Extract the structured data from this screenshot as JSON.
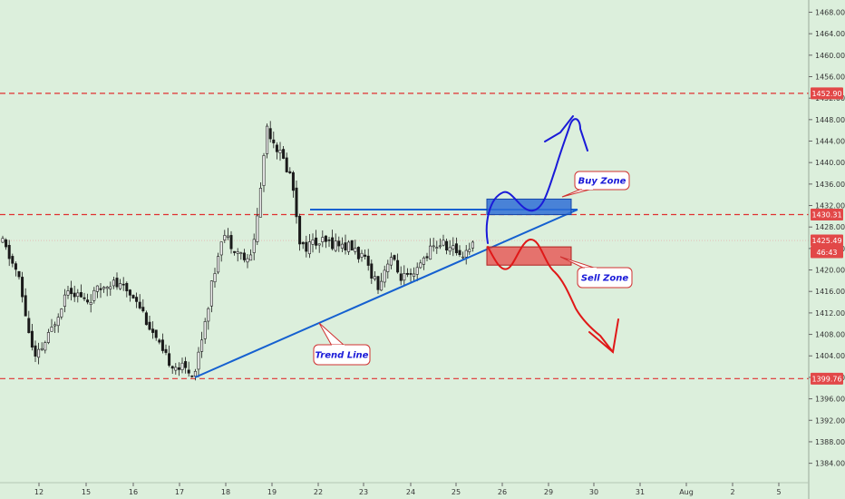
{
  "chart_data": {
    "type": "candlestick",
    "x_ticks": [
      "12",
      "15",
      "16",
      "17",
      "18",
      "19",
      "22",
      "23",
      "24",
      "25",
      "26",
      "29",
      "30",
      "31",
      "Aug",
      "2",
      "5"
    ],
    "y_ticks": [
      "1468.00",
      "1464.00",
      "1460.00",
      "1456.00",
      "1452.00",
      "1448.00",
      "1444.00",
      "1440.00",
      "1436.00",
      "1432.00",
      "1428.00",
      "1424.00",
      "1420.00",
      "1416.00",
      "1412.00",
      "1408.00",
      "1404.00",
      "1400.00",
      "1396.00",
      "1392.00",
      "1388.00",
      "1384.00"
    ],
    "ylim": [
      1381.5,
      1469.5
    ],
    "levels": [
      {
        "label": "1452.90",
        "value": 1452.9
      },
      {
        "label": "1430.31",
        "value": 1430.31
      },
      {
        "label": "1399.76",
        "value": 1399.76
      }
    ],
    "current_price": {
      "label": "1425.49",
      "value": 1425.49
    },
    "countdown": {
      "label": "46:43"
    },
    "buy_zone": {
      "label": "Buy Zone",
      "y_low": 1430.3,
      "y_high": 1433.2
    },
    "sell_zone": {
      "label": "Sell Zone",
      "y_low": 1420.9,
      "y_high": 1424.3
    },
    "trend_line": {
      "label": "Trend Line"
    },
    "grid": false,
    "colors": {
      "background": "#dcefdc",
      "candle": "#1a1a1a",
      "level_line": "#e03030",
      "trend_line": "#1560d0",
      "buy": "#2f6fd6",
      "sell": "#e84848",
      "label_bg": "#e24848"
    }
  }
}
